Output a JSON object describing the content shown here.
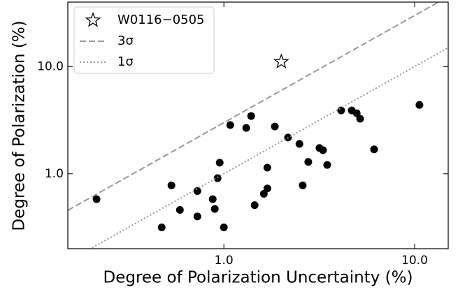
{
  "chart_data": {
    "type": "scatter",
    "xlabel": "Degree of Polarization Uncertainty (%)",
    "ylabel": "Degree of Polarization (%)",
    "log_x": true,
    "log_y": true,
    "xlim": [
      0.152,
      15
    ],
    "ylim": [
      0.2,
      40
    ],
    "xticks": [
      {
        "value": 1,
        "label": "1.0"
      },
      {
        "value": 10,
        "label": "10.0"
      }
    ],
    "yticks": [
      {
        "value": 1,
        "label": "1.0"
      },
      {
        "value": 10,
        "label": "10.0"
      }
    ],
    "legend": "upper left",
    "series": [
      {
        "name": "W0116−0505",
        "kind": "points",
        "marker": "star",
        "color": "#000000",
        "x": [
          2.0
        ],
        "values": [
          11.1
        ]
      },
      {
        "kind": "points",
        "marker": "circle",
        "color": "#000000",
        "x": [
          0.215,
          0.472,
          0.531,
          0.588,
          0.726,
          0.726,
          0.874,
          0.896,
          0.927,
          0.951,
          1.0,
          1.08,
          1.31,
          1.39,
          1.45,
          1.62,
          1.69,
          1.69,
          1.85,
          2.17,
          2.49,
          2.59,
          2.77,
          3.17,
          3.31,
          3.48,
          4.12,
          4.68,
          4.97,
          5.18,
          6.13,
          10.6
        ],
        "values": [
          0.58,
          0.316,
          0.78,
          0.46,
          0.4,
          0.69,
          0.58,
          0.47,
          0.91,
          1.27,
          0.316,
          2.85,
          2.68,
          3.46,
          0.51,
          0.65,
          1.14,
          0.73,
          2.76,
          2.18,
          1.9,
          0.78,
          1.29,
          1.74,
          1.66,
          1.21,
          3.9,
          3.9,
          3.67,
          3.26,
          1.69,
          4.39
        ]
      },
      {
        "name": "3σ",
        "kind": "line",
        "style": "dashed",
        "color": "#999999",
        "x": [
          0.152,
          15
        ],
        "values": [
          0.456,
          45
        ]
      },
      {
        "name": "1σ",
        "kind": "line",
        "style": "dotted",
        "color": "#999999",
        "x": [
          0.152,
          15
        ],
        "values": [
          0.152,
          15
        ]
      }
    ]
  }
}
